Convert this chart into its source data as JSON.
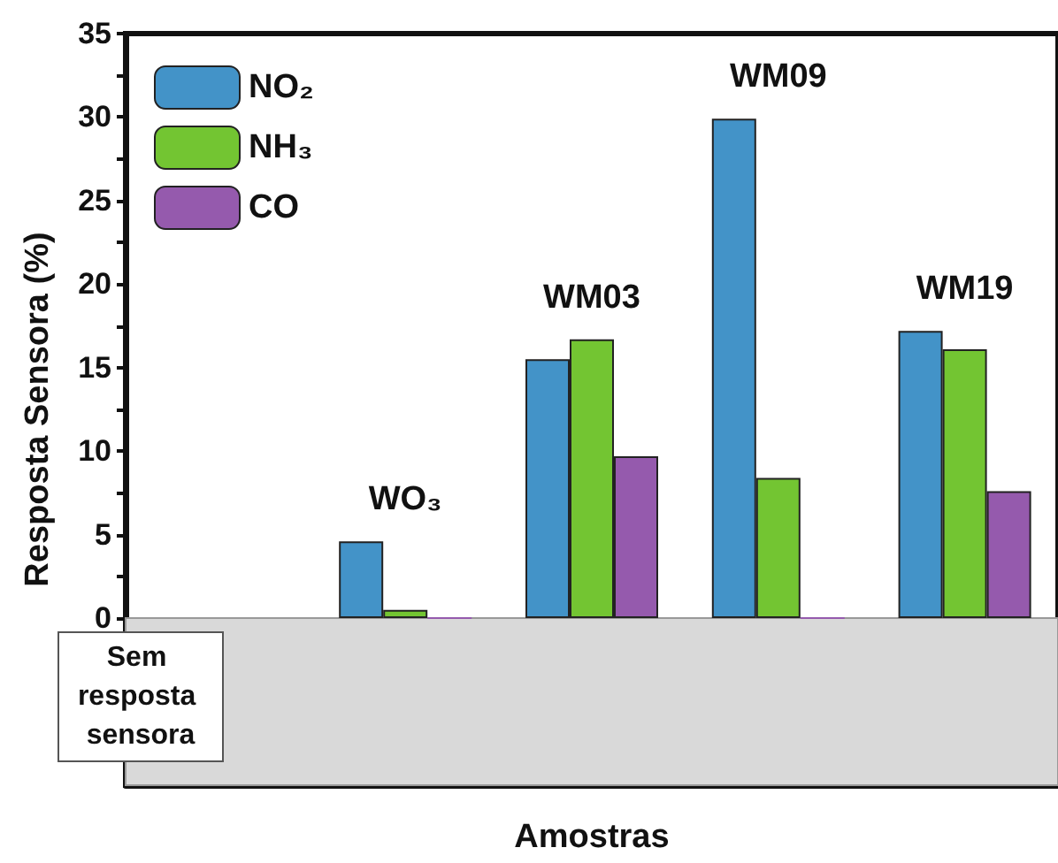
{
  "chart_data": {
    "type": "bar",
    "xlabel": "Amostras",
    "ylabel": "Resposta Sensora (%)",
    "categories": [
      null,
      "WO₃",
      "WM03",
      "WM09",
      "WM19"
    ],
    "series": [
      {
        "name": "NO₂",
        "color": "#4393c8",
        "values": [
          null,
          4.6,
          15.5,
          29.9,
          17.2
        ]
      },
      {
        "name": "NH₃",
        "color": "#73c532",
        "values": [
          null,
          0.5,
          16.7,
          8.4,
          16.1
        ]
      },
      {
        "name": "CO",
        "color": "#955aad",
        "values": [
          null,
          0,
          9.7,
          0,
          7.6
        ]
      }
    ],
    "ylim": [
      -10,
      35
    ],
    "yticks": [
      0,
      {
        "value": 2.5,
        "label": null
      },
      5,
      {
        "value": 7.5,
        "label": null
      },
      10,
      {
        "value": 12.5,
        "label": null
      },
      15,
      {
        "value": 17.5,
        "label": null
      },
      20,
      {
        "value": 22.5,
        "label": null
      },
      25,
      {
        "value": 27.5,
        "label": null
      },
      30,
      {
        "value": 32.5,
        "label": null
      },
      35
    ],
    "bands": [
      {
        "axis": "y",
        "from": -10,
        "to": 0,
        "label": "Sem resposta sensora",
        "color": "#d9d9d9"
      }
    ],
    "tick_labels": "y",
    "grid": false,
    "legend": "top left"
  }
}
